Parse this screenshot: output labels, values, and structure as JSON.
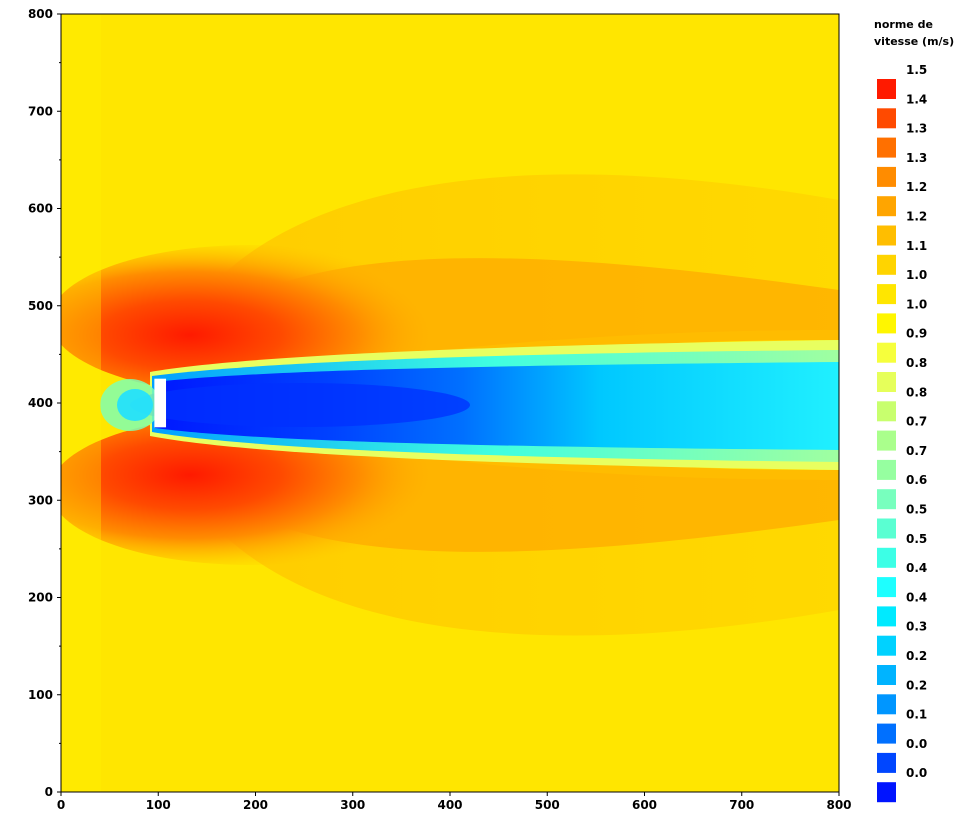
{
  "chart_data": {
    "type": "heatmap",
    "title": "",
    "xlabel": "",
    "ylabel": "",
    "xlim": [
      0,
      800
    ],
    "ylim": [
      0,
      800
    ],
    "x_ticks": [
      "0",
      "100",
      "200",
      "300",
      "400",
      "500",
      "600",
      "700",
      "800"
    ],
    "y_ticks": [
      "0",
      "100",
      "200",
      "300",
      "400",
      "500",
      "600",
      "700",
      "800"
    ],
    "obstacle": {
      "x": [
        96,
        108
      ],
      "y": [
        375,
        425
      ]
    },
    "colorbar": {
      "title_lines": [
        "norme de",
        "vitesse (m/s)"
      ],
      "labels": [
        "1.5",
        "1.4",
        "1.3",
        "1.3",
        "1.2",
        "1.2",
        "1.1",
        "1.0",
        "1.0",
        "0.9",
        "0.8",
        "0.8",
        "0.7",
        "0.7",
        "0.6",
        "0.5",
        "0.5",
        "0.4",
        "0.4",
        "0.3",
        "0.2",
        "0.2",
        "0.1",
        "0.0",
        "0.0"
      ],
      "colors": [
        "#ff1a00",
        "#ff4a00",
        "#ff7000",
        "#ff8c00",
        "#ffa500",
        "#ffbe00",
        "#ffd400",
        "#ffe600",
        "#fff600",
        "#f6ff3c",
        "#e6ff5a",
        "#c8ff6e",
        "#aaff8c",
        "#96ffa0",
        "#78ffbe",
        "#5affd2",
        "#3cffe6",
        "#1effff",
        "#00eaff",
        "#00d2ff",
        "#00b4ff",
        "#0096ff",
        "#0070ff",
        "#0046ff",
        "#0014ff"
      ]
    },
    "grid": false
  }
}
